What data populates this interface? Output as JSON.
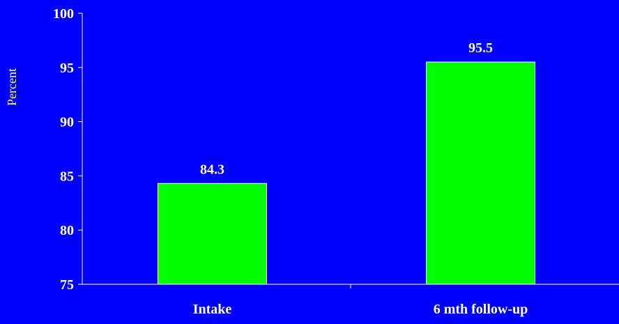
{
  "colors": {
    "background": "#0000FF",
    "bar": "#00FF00",
    "bar_stroke": "#FFFFFF",
    "axis": "#FFFFFF",
    "text": "#FFFFFF",
    "ylabel": "#FFFF66"
  },
  "chart_data": {
    "type": "bar",
    "title": "",
    "xlabel": "",
    "ylabel": "Percent",
    "categories": [
      "Intake",
      "6 mth follow-up"
    ],
    "values": [
      84.3,
      95.5
    ],
    "data_labels": [
      "84.3",
      "95.5"
    ],
    "ylim": [
      75,
      100
    ],
    "yticks": [
      75,
      80,
      85,
      90,
      95,
      100
    ],
    "grid": false,
    "legend": "none"
  }
}
